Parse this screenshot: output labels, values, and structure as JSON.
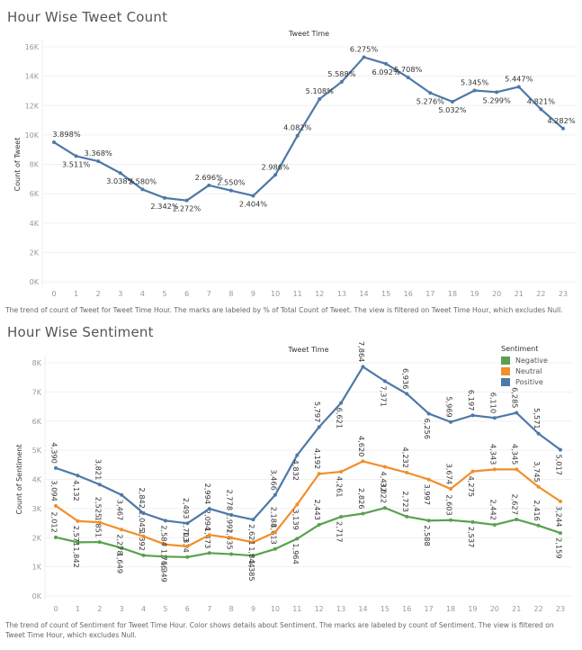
{
  "charts": {
    "tweet_count": {
      "title": "Hour Wise Tweet Count",
      "caption": "The trend of count of Tweet for Tweet Time Hour.  The marks are labeled by % of Total Count of Tweet. The view is filtered on Tweet Time Hour, which excludes Null."
    },
    "sentiment": {
      "title": "Hour Wise Sentiment",
      "caption": "The trend of count of Sentiment for Tweet Time Hour.  Color shows details about Sentiment.  The marks are labeled by count of Sentiment. The view is filtered on Tweet Time Hour, which excludes Null.",
      "legend": {
        "title": "Sentiment",
        "items": [
          {
            "label": "Negative",
            "color": "#59a14f"
          },
          {
            "label": "Neutral",
            "color": "#f28e2b"
          },
          {
            "label": "Positive",
            "color": "#4e79a7"
          }
        ]
      }
    }
  },
  "chart_data": [
    {
      "type": "line",
      "title": "Hour Wise Tweet Count",
      "xlabel": "Tweet Time",
      "ylabel": "Count of Tweet",
      "x": [
        0,
        1,
        2,
        3,
        4,
        5,
        6,
        7,
        8,
        9,
        10,
        11,
        12,
        13,
        14,
        15,
        16,
        17,
        18,
        19,
        20,
        21,
        22,
        23
      ],
      "yticks": [
        "0K",
        "2K",
        "4K",
        "6K",
        "8K",
        "10K",
        "12K",
        "14K",
        "16K"
      ],
      "ylim": [
        0,
        16000
      ],
      "grid": true,
      "series": [
        {
          "name": "Count of Tweet",
          "color": "#4e79a7",
          "values": [
            9500,
            8556,
            8208,
            7404,
            6288,
            5707,
            5537,
            6570,
            6214,
            5858,
            7277,
            9948,
            12448,
            13618,
            15292,
            14846,
            13910,
            12857,
            12263,
            13025,
            12914,
            13274,
            11749,
            10435
          ],
          "labels": [
            "3.898%",
            "3.511%",
            "3.368%",
            "3.038%",
            "2.580%",
            "2.342%",
            "2.272%",
            "2.696%",
            "2.550%",
            "2.404%",
            "2.986%",
            "4.082%",
            "5.108%",
            "5.588%",
            "6.275%",
            "6.092%",
            "5.708%",
            "5.276%",
            "5.032%",
            "5.345%",
            "5.299%",
            "5.447%",
            "4.821%",
            "4.282%"
          ]
        }
      ]
    },
    {
      "type": "line",
      "title": "Hour Wise Sentiment",
      "xlabel": "Tweet Time",
      "ylabel": "Count of Sentiment",
      "x": [
        0,
        1,
        2,
        3,
        4,
        5,
        6,
        7,
        8,
        9,
        10,
        11,
        12,
        13,
        14,
        15,
        16,
        17,
        18,
        19,
        20,
        21,
        22,
        23
      ],
      "yticks": [
        "0K",
        "1K",
        "2K",
        "3K",
        "4K",
        "5K",
        "6K",
        "7K",
        "8K"
      ],
      "ylim": [
        0,
        8000
      ],
      "grid": true,
      "legend": "top-right",
      "series": [
        {
          "name": "Negative",
          "color": "#59a14f",
          "values": [
            2012,
            1842,
            1851,
            1649,
            1392,
            1349,
            1334,
            1473,
            1435,
            1385,
            1613,
            1964,
            2443,
            2717,
            2826,
            3022,
            2723,
            2588,
            2603,
            2537,
            2442,
            2627,
            2416,
            2159
          ]
        },
        {
          "name": "Neutral",
          "color": "#f28e2b",
          "values": [
            3094,
            2571,
            2525,
            2278,
            2045,
            1766,
            1703,
            2094,
            1992,
            1844,
            2188,
            3139,
            4192,
            4261,
            4620,
            4432,
            4232,
            3997,
            3674,
            4275,
            4343,
            4345,
            3745,
            3244
          ]
        },
        {
          "name": "Positive",
          "color": "#4e79a7",
          "values": [
            4390,
            4132,
            3821,
            3467,
            2842,
            2584,
            2493,
            2994,
            2778,
            2621,
            3466,
            4832,
            5797,
            6621,
            7864,
            7371,
            6936,
            6256,
            5969,
            6197,
            6110,
            6285,
            5571,
            5017
          ]
        }
      ]
    }
  ]
}
